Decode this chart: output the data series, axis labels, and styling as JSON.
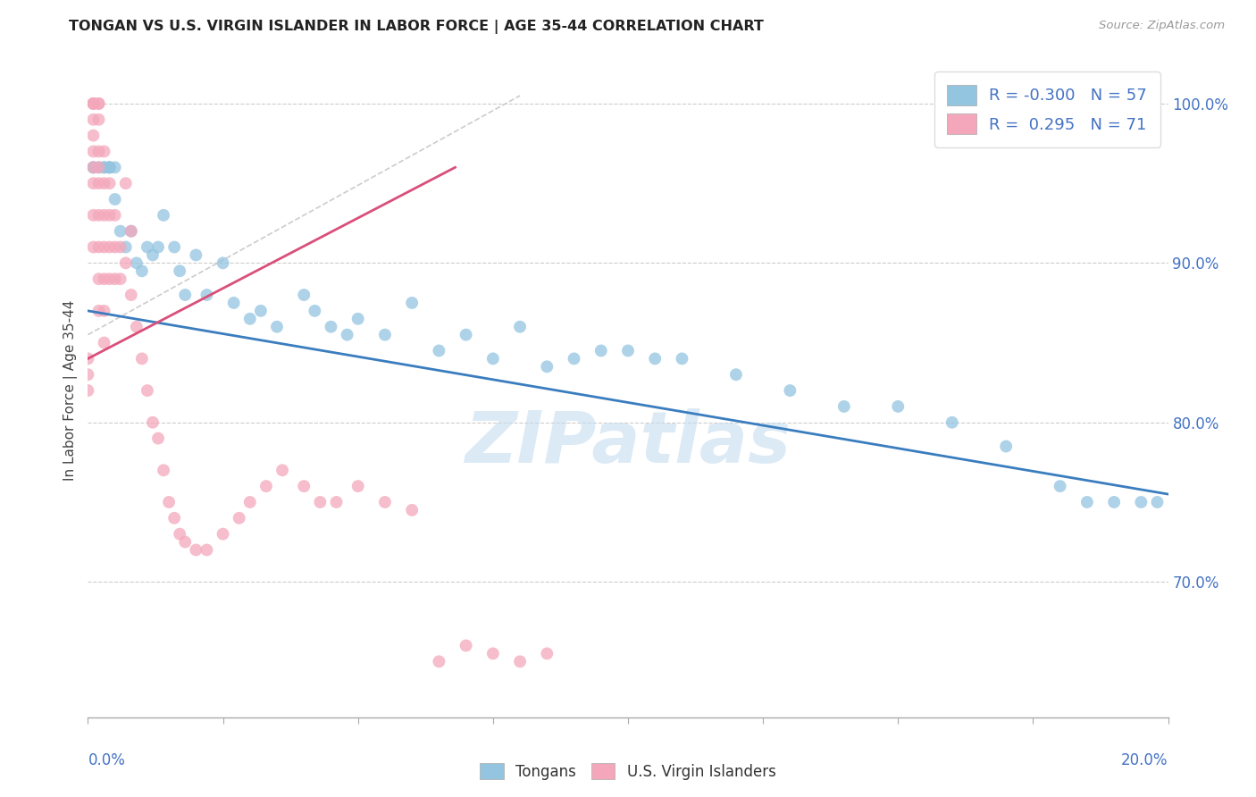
{
  "title": "TONGAN VS U.S. VIRGIN ISLANDER IN LABOR FORCE | AGE 35-44 CORRELATION CHART",
  "source": "Source: ZipAtlas.com",
  "ylabel": "In Labor Force | Age 35-44",
  "xmin": 0.0,
  "xmax": 0.2,
  "ymin": 0.615,
  "ymax": 1.025,
  "yticks": [
    0.7,
    0.8,
    0.9,
    1.0
  ],
  "ytick_labels": [
    "70.0%",
    "80.0%",
    "90.0%",
    "100.0%"
  ],
  "legend_R_blue": "-0.300",
  "legend_N_blue": "57",
  "legend_R_pink": " 0.295",
  "legend_N_pink": "71",
  "blue_color": "#93c4e0",
  "pink_color": "#f4a7bb",
  "blue_line_color": "#3a7dbf",
  "pink_line_color": "#d94f7a",
  "ref_line_color": "#cccccc",
  "watermark": "ZIPatlas",
  "tongans_x": [
    0.001,
    0.001,
    0.002,
    0.003,
    0.003,
    0.004,
    0.004,
    0.004,
    0.005,
    0.005,
    0.006,
    0.007,
    0.008,
    0.009,
    0.01,
    0.011,
    0.012,
    0.013,
    0.014,
    0.016,
    0.017,
    0.018,
    0.02,
    0.022,
    0.025,
    0.027,
    0.03,
    0.032,
    0.035,
    0.04,
    0.042,
    0.045,
    0.048,
    0.05,
    0.055,
    0.06,
    0.065,
    0.07,
    0.075,
    0.08,
    0.085,
    0.09,
    0.095,
    0.1,
    0.105,
    0.11,
    0.12,
    0.13,
    0.14,
    0.15,
    0.16,
    0.17,
    0.18,
    0.185,
    0.19,
    0.195,
    0.198
  ],
  "tongans_y": [
    0.96,
    0.96,
    0.96,
    0.96,
    0.96,
    0.96,
    0.96,
    0.96,
    0.96,
    0.94,
    0.92,
    0.91,
    0.92,
    0.9,
    0.895,
    0.91,
    0.905,
    0.91,
    0.93,
    0.91,
    0.895,
    0.88,
    0.905,
    0.88,
    0.9,
    0.875,
    0.865,
    0.87,
    0.86,
    0.88,
    0.87,
    0.86,
    0.855,
    0.865,
    0.855,
    0.875,
    0.845,
    0.855,
    0.84,
    0.86,
    0.835,
    0.84,
    0.845,
    0.845,
    0.84,
    0.84,
    0.83,
    0.82,
    0.81,
    0.81,
    0.8,
    0.785,
    0.76,
    0.75,
    0.75,
    0.75,
    0.75
  ],
  "virgins_x": [
    0.0,
    0.0,
    0.0,
    0.001,
    0.001,
    0.001,
    0.001,
    0.001,
    0.001,
    0.001,
    0.001,
    0.001,
    0.001,
    0.002,
    0.002,
    0.002,
    0.002,
    0.002,
    0.002,
    0.002,
    0.002,
    0.002,
    0.002,
    0.003,
    0.003,
    0.003,
    0.003,
    0.003,
    0.003,
    0.003,
    0.004,
    0.004,
    0.004,
    0.004,
    0.005,
    0.005,
    0.005,
    0.006,
    0.006,
    0.007,
    0.007,
    0.008,
    0.008,
    0.009,
    0.01,
    0.011,
    0.012,
    0.013,
    0.014,
    0.015,
    0.016,
    0.017,
    0.018,
    0.02,
    0.022,
    0.025,
    0.028,
    0.03,
    0.033,
    0.036,
    0.04,
    0.043,
    0.046,
    0.05,
    0.055,
    0.06,
    0.065,
    0.07,
    0.075,
    0.08,
    0.085
  ],
  "virgins_y": [
    0.84,
    0.83,
    0.82,
    1.0,
    1.0,
    1.0,
    0.99,
    0.98,
    0.97,
    0.96,
    0.95,
    0.93,
    0.91,
    1.0,
    1.0,
    0.99,
    0.97,
    0.96,
    0.95,
    0.93,
    0.91,
    0.89,
    0.87,
    0.97,
    0.95,
    0.93,
    0.91,
    0.89,
    0.87,
    0.85,
    0.95,
    0.93,
    0.91,
    0.89,
    0.93,
    0.91,
    0.89,
    0.91,
    0.89,
    0.95,
    0.9,
    0.92,
    0.88,
    0.86,
    0.84,
    0.82,
    0.8,
    0.79,
    0.77,
    0.75,
    0.74,
    0.73,
    0.725,
    0.72,
    0.72,
    0.73,
    0.74,
    0.75,
    0.76,
    0.77,
    0.76,
    0.75,
    0.75,
    0.76,
    0.75,
    0.745,
    0.65,
    0.66,
    0.655,
    0.65,
    0.655
  ],
  "blue_trendline_x": [
    0.0,
    0.2
  ],
  "blue_trendline_y": [
    0.87,
    0.755
  ],
  "pink_trendline_x": [
    0.0,
    0.068
  ],
  "pink_trendline_y": [
    0.84,
    0.96
  ],
  "ref_line_x": [
    0.0,
    0.08
  ],
  "ref_line_y": [
    0.855,
    1.005
  ]
}
